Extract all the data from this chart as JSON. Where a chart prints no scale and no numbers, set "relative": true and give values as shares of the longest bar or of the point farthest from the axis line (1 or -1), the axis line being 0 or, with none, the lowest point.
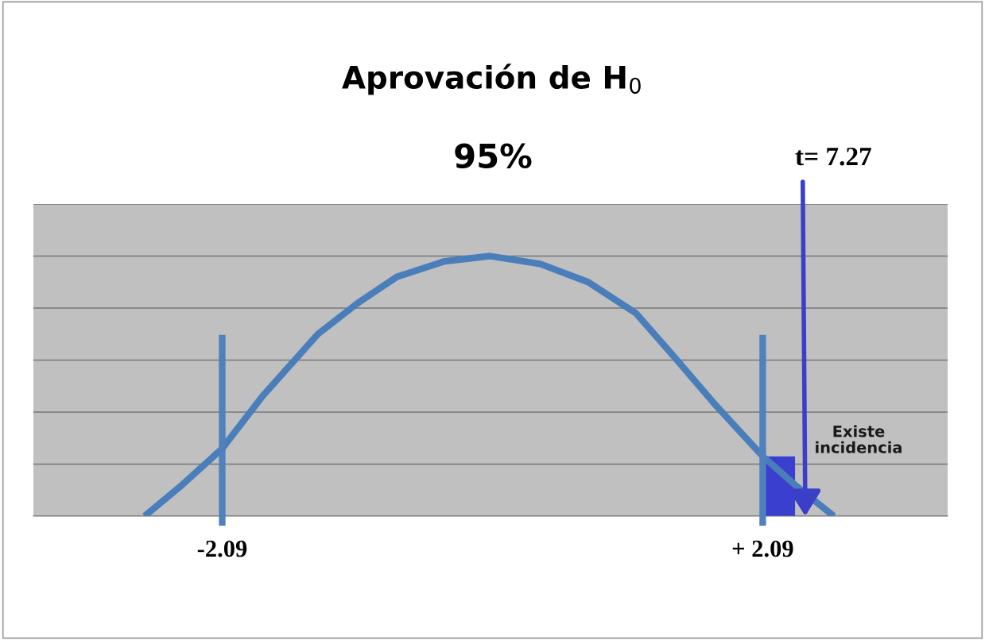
{
  "chart_data": {
    "type": "line",
    "title": "Aprovación de H$_{0}$",
    "relative": true,
    "x": [
      -2.69,
      -2.4,
      -2.09,
      -1.78,
      -1.35,
      -1.04,
      -0.74,
      -0.37,
      -0.02,
      0.37,
      0.74,
      1.11,
      1.41,
      1.72,
      2.09,
      2.34,
      2.64
    ],
    "series": [
      {
        "color": "#4a7ebb",
        "values": [
          0,
          0.12,
          0.26,
          0.46,
          0.7,
          0.82,
          0.92,
          0.98,
          1,
          0.97,
          0.9,
          0.78,
          0.61,
          0.43,
          0.23,
          0.12,
          0
        ]
      }
    ],
    "xlim": [
      -3.55,
      3.52
    ],
    "xticks": [
      {
        "value": -2.09,
        "label": "-2.09"
      },
      {
        "value": 2.09,
        "label": "+ 2.09"
      }
    ],
    "ref_lines": [
      {
        "axis": "x",
        "value": -2.09,
        "color": "#4f81bd"
      },
      {
        "axis": "x",
        "value": 2.09,
        "color": "#4f81bd"
      }
    ],
    "bands": [
      {
        "axis": "x",
        "from": 2.09,
        "to": 2.34,
        "color": "#3a3fcf"
      }
    ],
    "annotations": [
      "95%",
      "t= 7.27",
      "Existe incidencia"
    ],
    "grid": "y",
    "marker": "none",
    "line_style": "solid"
  }
}
